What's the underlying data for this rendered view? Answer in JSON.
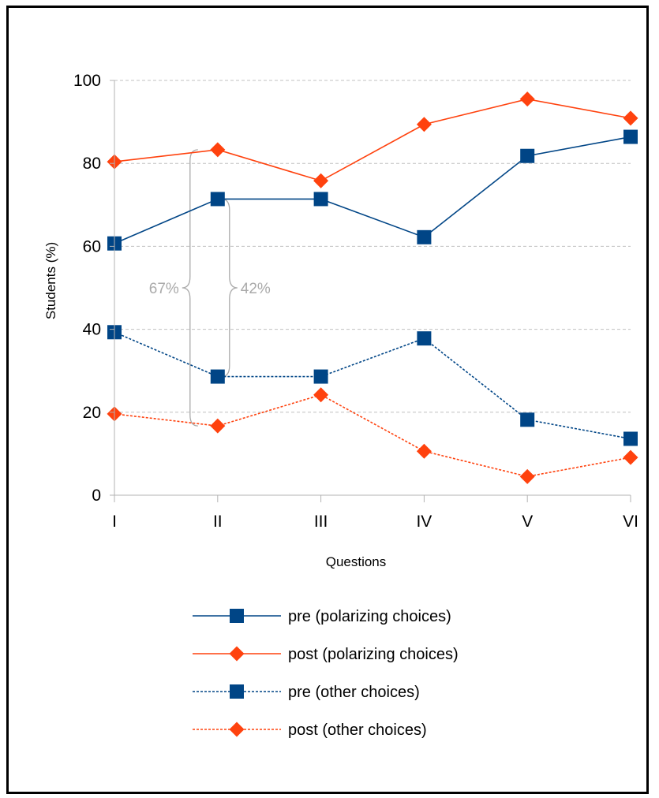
{
  "chart_data": {
    "type": "line",
    "title": "",
    "xlabel": "Questions",
    "ylabel": "Students (%)",
    "ylim": [
      0,
      100
    ],
    "yticks": [
      0,
      20,
      40,
      60,
      80,
      100
    ],
    "grid": "horizontal dashed",
    "legend_position": "bottom",
    "categories": [
      "I",
      "II",
      "III",
      "IV",
      "V",
      "VI"
    ],
    "series": [
      {
        "name": "pre (polarizing choices)",
        "values": [
          60.7,
          71.4,
          71.4,
          62.2,
          81.8,
          86.4
        ],
        "color": "#004586",
        "marker": "square",
        "dash": "solid"
      },
      {
        "name": "post (polarizing choices)",
        "values": [
          80.4,
          83.3,
          75.8,
          89.4,
          95.5,
          90.9
        ],
        "color": "#ff420e",
        "marker": "diamond",
        "dash": "solid"
      },
      {
        "name": "pre (other choices)",
        "values": [
          39.3,
          28.6,
          28.6,
          37.8,
          18.2,
          13.6
        ],
        "color": "#004586",
        "marker": "square",
        "dash": "dotted"
      },
      {
        "name": "post (other choices)",
        "values": [
          19.6,
          16.7,
          24.2,
          10.6,
          4.5,
          9.1
        ],
        "color": "#ff420e",
        "marker": "diamond",
        "dash": "dotted"
      }
    ],
    "annotations": [
      {
        "text": "67%",
        "category": "II",
        "from": 16.7,
        "to": 83.3,
        "side": "left"
      },
      {
        "text": "42%",
        "category": "II",
        "from": 28.6,
        "to": 71.4,
        "side": "right"
      }
    ]
  }
}
